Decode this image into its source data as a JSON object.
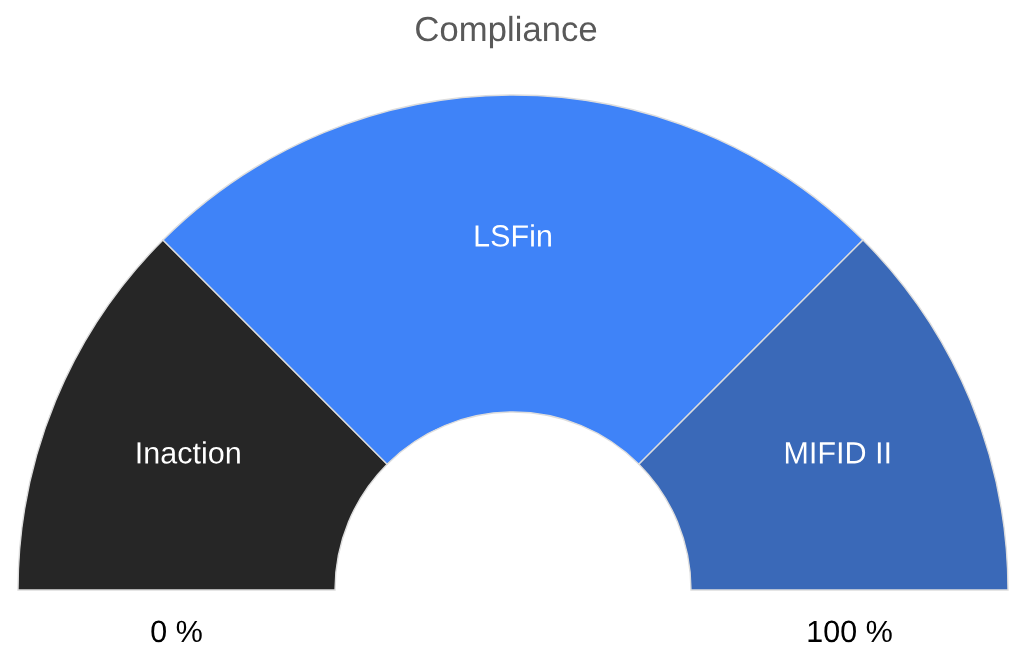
{
  "chart_data": {
    "type": "donut",
    "title": "Compliance",
    "categories": [
      "Inaction",
      "LSFin",
      "MIFID II"
    ],
    "values": [
      25,
      50,
      25
    ],
    "colors": [
      "#262626",
      "#3f83f8",
      "#3a69b8"
    ],
    "annotations": [
      "0 %",
      "100 %"
    ]
  }
}
